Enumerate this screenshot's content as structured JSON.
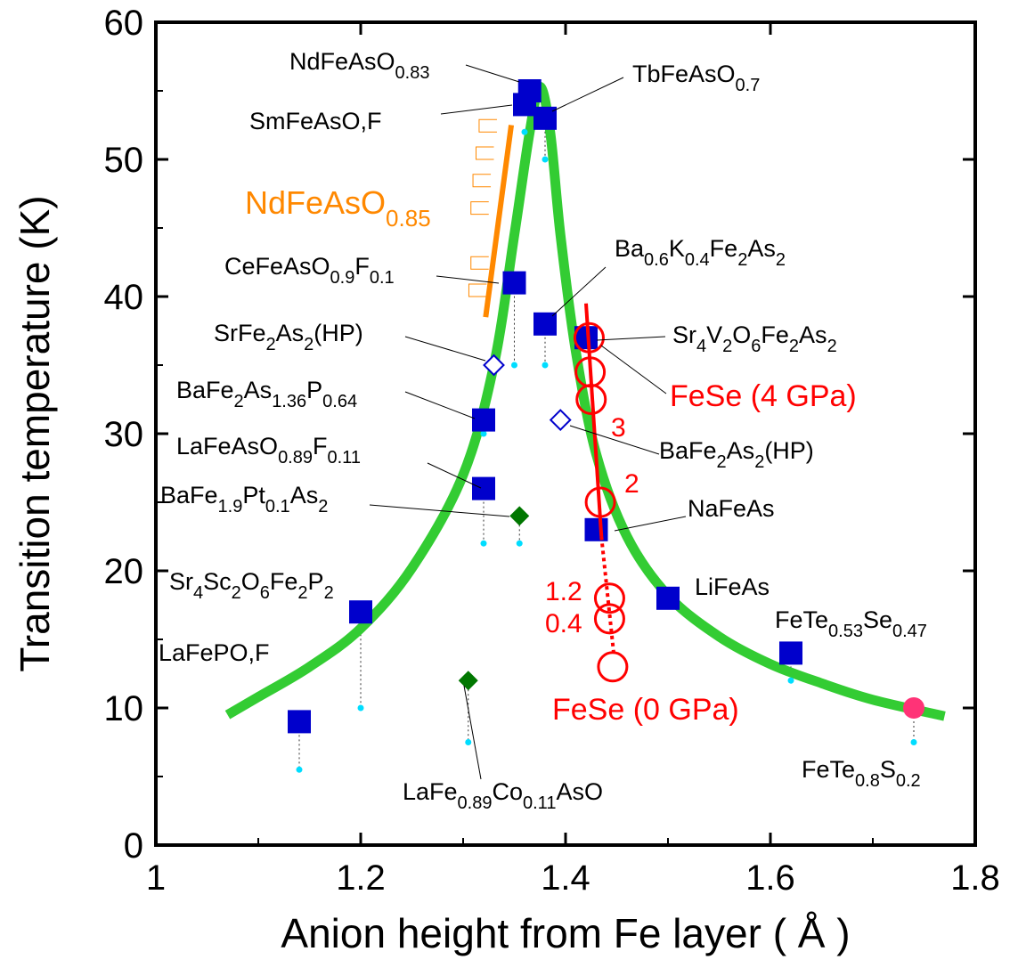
{
  "chart_data": {
    "type": "scatter",
    "xlabel": "Anion height from Fe layer ( Å )",
    "ylabel": "Transition temperature (K)",
    "xlim": [
      1.0,
      1.8
    ],
    "ylim": [
      0,
      60
    ],
    "x_ticks": [
      "1",
      "1.2",
      "1.4",
      "1.6",
      "1.8"
    ],
    "y_ticks": [
      "0",
      "10",
      "20",
      "30",
      "40",
      "50",
      "60"
    ],
    "colors": {
      "curve": "#33cc33",
      "square": "#0000cc",
      "diamond_open": "#0000cc",
      "diamond_filled": "#007700",
      "fese": "#ff0000",
      "nd085": "#ff8800",
      "pink": "#ff3377",
      "cyan": "#00ddff"
    },
    "curve": [
      {
        "x": 1.07,
        "y": 9.5
      },
      {
        "x": 1.1,
        "y": 10.8
      },
      {
        "x": 1.15,
        "y": 13.0
      },
      {
        "x": 1.2,
        "y": 15.8
      },
      {
        "x": 1.25,
        "y": 20.2
      },
      {
        "x": 1.3,
        "y": 27.0
      },
      {
        "x": 1.33,
        "y": 35.0
      },
      {
        "x": 1.35,
        "y": 44.5
      },
      {
        "x": 1.365,
        "y": 52.0
      },
      {
        "x": 1.375,
        "y": 55.3
      },
      {
        "x": 1.385,
        "y": 52.0
      },
      {
        "x": 1.395,
        "y": 44.5
      },
      {
        "x": 1.41,
        "y": 36.0
      },
      {
        "x": 1.43,
        "y": 28.5
      },
      {
        "x": 1.46,
        "y": 22.5
      },
      {
        "x": 1.5,
        "y": 18.2
      },
      {
        "x": 1.55,
        "y": 15.2
      },
      {
        "x": 1.6,
        "y": 13.2
      },
      {
        "x": 1.65,
        "y": 11.8
      },
      {
        "x": 1.7,
        "y": 10.6
      },
      {
        "x": 1.77,
        "y": 9.4
      }
    ],
    "squares": [
      {
        "name": "NdFeAsO0.83",
        "x": 1.365,
        "y": 55
      },
      {
        "name": "SmFeAsO,F",
        "x": 1.36,
        "y": 54
      },
      {
        "name": "TbFeAsO0.7",
        "x": 1.38,
        "y": 53
      },
      {
        "name": "CeFeAsO0.9F0.1",
        "x": 1.35,
        "y": 41
      },
      {
        "name": "Ba0.6K0.4Fe2As2",
        "x": 1.38,
        "y": 38
      },
      {
        "name": "Sr4V2O6Fe2As2",
        "x": 1.42,
        "y": 37
      },
      {
        "name": "BaFe2As1.36P0.64",
        "x": 1.32,
        "y": 31
      },
      {
        "name": "LaFeAsO0.89F0.11",
        "x": 1.32,
        "y": 26
      },
      {
        "name": "NaFeAs",
        "x": 1.43,
        "y": 23
      },
      {
        "name": "LiFeAs",
        "x": 1.5,
        "y": 18
      },
      {
        "name": "Sr4Sc2O6Fe2P2",
        "x": 1.2,
        "y": 17
      },
      {
        "name": "FeTe0.53Se0.47",
        "x": 1.62,
        "y": 14
      },
      {
        "name": "LaFePO,F",
        "x": 1.14,
        "y": 9
      }
    ],
    "diamonds_open": [
      {
        "name": "SrFe2As2(HP)",
        "x": 1.33,
        "y": 35
      },
      {
        "name": "BaFe2As2(HP)",
        "x": 1.395,
        "y": 31
      }
    ],
    "diamonds_filled": [
      {
        "name": "BaFe1.9Pt0.1As2",
        "x": 1.355,
        "y": 24
      },
      {
        "name": "LaFe0.89Co0.11AsO",
        "x": 1.305,
        "y": 12
      }
    ],
    "circle_filled": {
      "name": "FeTe0.8S0.2",
      "x": 1.74,
      "y": 10
    },
    "cyan_dots": [
      {
        "x": 1.14,
        "y": 5.5
      },
      {
        "x": 1.2,
        "y": 10
      },
      {
        "x": 1.305,
        "y": 7.5
      },
      {
        "x": 1.32,
        "y": 22
      },
      {
        "x": 1.32,
        "y": 30
      },
      {
        "x": 1.355,
        "y": 22
      },
      {
        "x": 1.35,
        "y": 35
      },
      {
        "x": 1.36,
        "y": 52
      },
      {
        "x": 1.38,
        "y": 50
      },
      {
        "x": 1.38,
        "y": 35
      },
      {
        "x": 1.62,
        "y": 12
      },
      {
        "x": 1.74,
        "y": 7.5
      }
    ],
    "drop_lines": [
      {
        "x": 1.14,
        "y1": 9,
        "y2": 5.5
      },
      {
        "x": 1.2,
        "y1": 17,
        "y2": 10
      },
      {
        "x": 1.305,
        "y1": 12,
        "y2": 7.5
      },
      {
        "x": 1.32,
        "y1": 26,
        "y2": 22
      },
      {
        "x": 1.355,
        "y1": 24,
        "y2": 22
      },
      {
        "x": 1.35,
        "y1": 41,
        "y2": 35
      },
      {
        "x": 1.38,
        "y1": 38,
        "y2": 35
      },
      {
        "x": 1.38,
        "y1": 53,
        "y2": 50
      },
      {
        "x": 1.62,
        "y1": 14,
        "y2": 12
      },
      {
        "x": 1.74,
        "y1": 10,
        "y2": 7.5
      }
    ],
    "fese": {
      "points": [
        {
          "x": 1.423,
          "y": 37
        },
        {
          "x": 1.424,
          "y": 34.5
        },
        {
          "x": 1.425,
          "y": 32.5
        },
        {
          "x": 1.434,
          "y": 25
        },
        {
          "x": 1.443,
          "y": 18
        },
        {
          "x": 1.443,
          "y": 16.5
        },
        {
          "x": 1.446,
          "y": 13
        }
      ],
      "solid_line": [
        {
          "x": 1.42,
          "y": 39.5
        },
        {
          "x": 1.435,
          "y": 22.5
        }
      ],
      "dotted_line": [
        {
          "x": 1.435,
          "y": 22.5
        },
        {
          "x": 1.447,
          "y": 14
        }
      ],
      "pressure_labels": [
        "3",
        "2",
        "1.2",
        "0.4"
      ],
      "label_top": "FeSe (4 GPa)",
      "label_bottom": "FeSe (0 GPa)"
    },
    "nd085": {
      "label": "NdFeAsO",
      "label_sub": "0.85",
      "line": [
        {
          "x": 1.322,
          "y": 38.5
        },
        {
          "x": 1.347,
          "y": 52.5
        }
      ],
      "steps": [
        {
          "x": 1.323,
          "y": 40
        },
        {
          "x": 1.325,
          "y": 42
        },
        {
          "x": 1.325,
          "y": 46
        },
        {
          "x": 1.327,
          "y": 48
        },
        {
          "x": 1.33,
          "y": 50
        },
        {
          "x": 1.333,
          "y": 52
        }
      ]
    }
  }
}
